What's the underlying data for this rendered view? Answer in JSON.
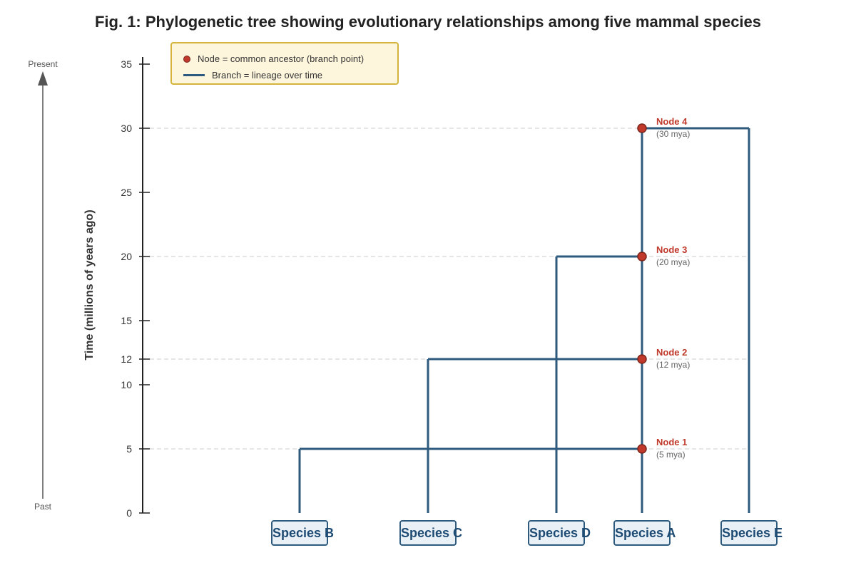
{
  "title": "Fig. 1: Phylogenetic tree showing evolutionary relationships among five mammal species",
  "axis": {
    "label": "Time (millions of years ago)",
    "ticks": [
      0,
      5,
      10,
      12,
      15,
      20,
      25,
      30,
      35
    ],
    "range": [
      0,
      35
    ]
  },
  "time_arrow": {
    "top_label": "Present",
    "bottom_label": "Past"
  },
  "legend": {
    "node_label": "Node = common ancestor (branch point)",
    "branch_label": "Branch = lineage over time"
  },
  "species": [
    {
      "id": "B",
      "label": "Species B"
    },
    {
      "id": "C",
      "label": "Species C"
    },
    {
      "id": "D",
      "label": "Species D"
    },
    {
      "id": "A",
      "label": "Species A"
    },
    {
      "id": "E",
      "label": "Species E"
    }
  ],
  "nodes": [
    {
      "label": "Node 1",
      "time": 5,
      "time_label": "(5 mya)",
      "joins": [
        "B",
        "A"
      ]
    },
    {
      "label": "Node 2",
      "time": 12,
      "time_label": "(12 mya)",
      "joins": [
        "C",
        "A"
      ]
    },
    {
      "label": "Node 3",
      "time": 20,
      "time_label": "(20 mya)",
      "joins": [
        "D",
        "A"
      ]
    },
    {
      "label": "Node 4",
      "time": 30,
      "time_label": "(30 mya)",
      "joins": [
        "A",
        "E"
      ]
    }
  ],
  "colors": {
    "branch": "#2e5a7e",
    "node_fill": "#c0392b",
    "node_stroke": "#7b241c",
    "node_label": "#c0392b",
    "grid": "#cccccc",
    "legend_bg": "#fdf5dc",
    "legend_border": "#d4b43a"
  }
}
